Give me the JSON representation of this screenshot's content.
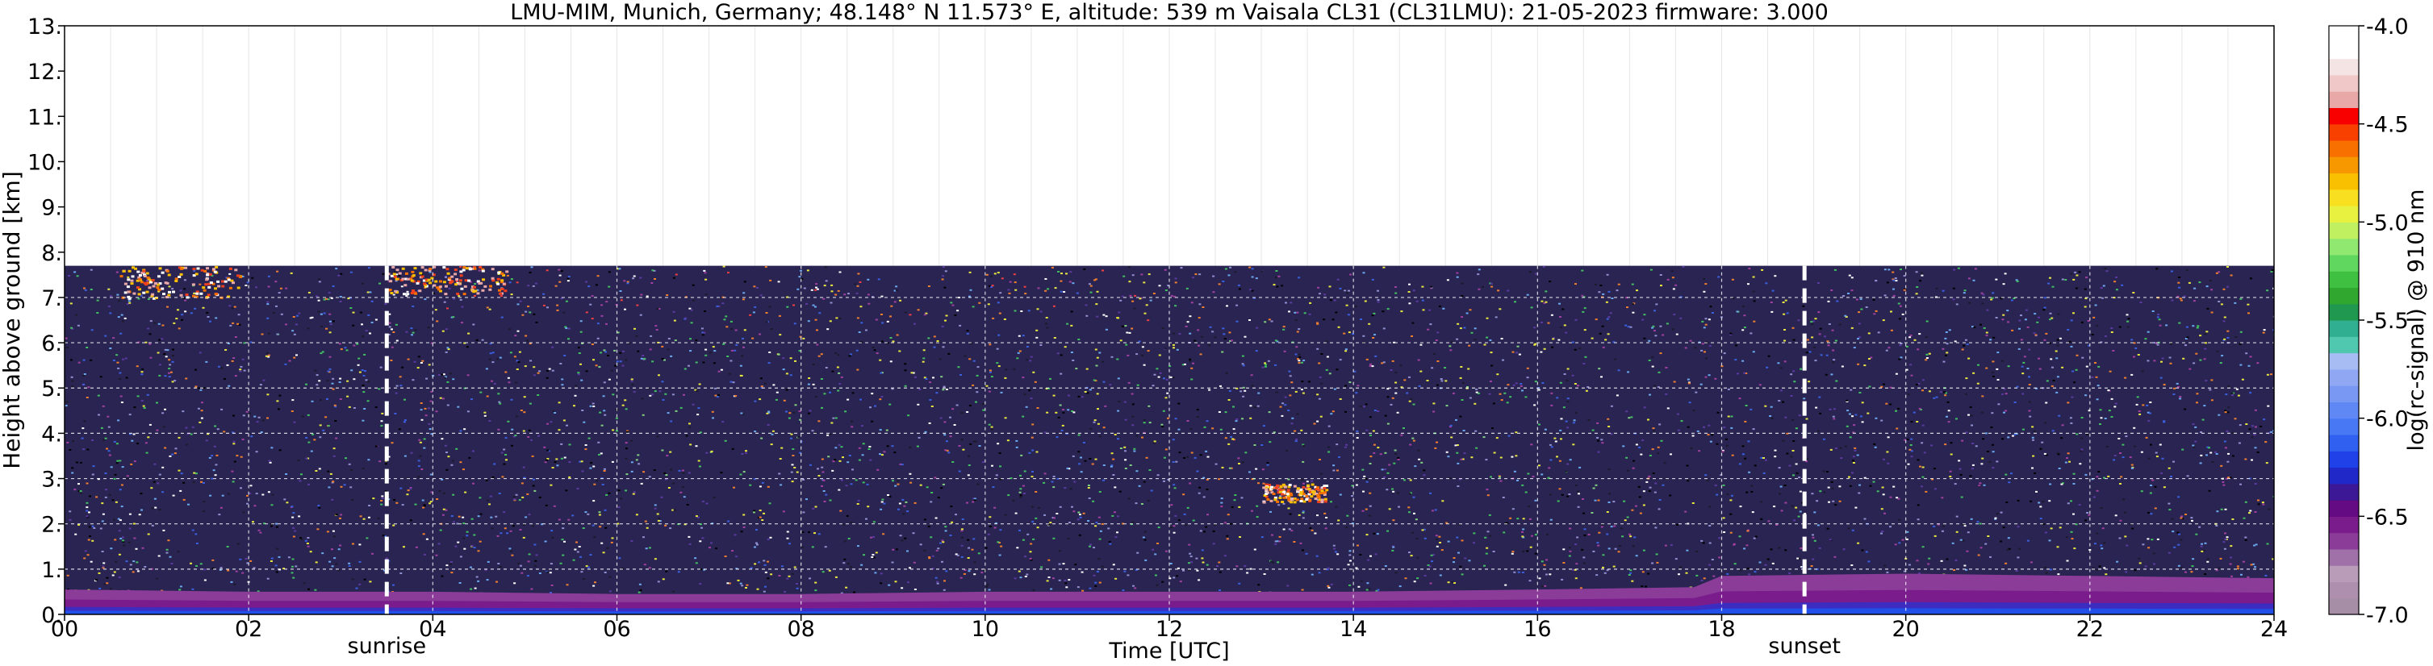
{
  "chart_data": {
    "type": "heatmap",
    "title": "LMU-MIM, Munich, Germany; 48.148° N 11.573° E, altitude: 539 m    Vaisala CL31 (CL31LMU): 21-05-2023    firmware: 3.000",
    "xlabel": "Time [UTC]",
    "ylabel": "Height above ground [km]",
    "xlim": [
      0,
      24
    ],
    "ylim": [
      0,
      13
    ],
    "x_ticks": [
      {
        "v": 0,
        "label": "00"
      },
      {
        "v": 2,
        "label": "02"
      },
      {
        "v": 4,
        "label": "04"
      },
      {
        "v": 6,
        "label": "06"
      },
      {
        "v": 8,
        "label": "08"
      },
      {
        "v": 10,
        "label": "10"
      },
      {
        "v": 12,
        "label": "12"
      },
      {
        "v": 14,
        "label": "14"
      },
      {
        "v": 16,
        "label": "16"
      },
      {
        "v": 18,
        "label": "18"
      },
      {
        "v": 20,
        "label": "20"
      },
      {
        "v": 22,
        "label": "22"
      },
      {
        "v": 24,
        "label": "24"
      }
    ],
    "y_ticks": [
      {
        "v": 0,
        "label": "0."
      },
      {
        "v": 1,
        "label": "1."
      },
      {
        "v": 2,
        "label": "2."
      },
      {
        "v": 3,
        "label": "3."
      },
      {
        "v": 4,
        "label": "4."
      },
      {
        "v": 5,
        "label": "5."
      },
      {
        "v": 6,
        "label": "6."
      },
      {
        "v": 7,
        "label": "7."
      },
      {
        "v": 8,
        "label": "8."
      },
      {
        "v": 9,
        "label": "9."
      },
      {
        "v": 10,
        "label": "10."
      },
      {
        "v": 11,
        "label": "11."
      },
      {
        "v": 12,
        "label": "12."
      },
      {
        "v": 13,
        "label": "13."
      }
    ],
    "data_top_km": 7.7,
    "events": [
      {
        "time": 3.5,
        "label": "sunrise"
      },
      {
        "time": 18.9,
        "label": "sunset"
      }
    ],
    "boundary_layer_top_km": [
      [
        0,
        0.55
      ],
      [
        2,
        0.5
      ],
      [
        4,
        0.5
      ],
      [
        6,
        0.45
      ],
      [
        8,
        0.45
      ],
      [
        10,
        0.5
      ],
      [
        12,
        0.5
      ],
      [
        14,
        0.5
      ],
      [
        16,
        0.55
      ],
      [
        17.7,
        0.6
      ],
      [
        18,
        0.85
      ],
      [
        20,
        0.9
      ],
      [
        22,
        0.85
      ],
      [
        24,
        0.8
      ]
    ],
    "clouds": [
      {
        "t0": 0.6,
        "t1": 1.9,
        "h0": 7.0,
        "h1": 7.7
      },
      {
        "t0": 3.5,
        "t1": 4.8,
        "h0": 7.1,
        "h1": 7.7
      },
      {
        "t0": 13.0,
        "t1": 13.7,
        "h0": 2.5,
        "h1": 2.9
      }
    ],
    "colorbar": {
      "label": "log(rc-signal) @ 910 nm",
      "range": [
        -7.0,
        -4.0
      ],
      "ticks": [
        {
          "v": -4.0,
          "label": "-4.0"
        },
        {
          "v": -4.5,
          "label": "-4.5"
        },
        {
          "v": -5.0,
          "label": "-5.0"
        },
        {
          "v": -5.5,
          "label": "-5.5"
        },
        {
          "v": -6.0,
          "label": "-6.0"
        },
        {
          "v": -6.5,
          "label": "-6.5"
        },
        {
          "v": -7.0,
          "label": "-7.0"
        }
      ],
      "colors": [
        "#a68ea6",
        "#ae90ae",
        "#b89cb8",
        "#a070a8",
        "#8a3c98",
        "#7a1c8c",
        "#640a82",
        "#3c1896",
        "#2028c8",
        "#2040e8",
        "#3060f0",
        "#4878f4",
        "#6088f4",
        "#7898f4",
        "#90a8f4",
        "#a8bcf4",
        "#50c8b0",
        "#30b090",
        "#209850",
        "#30a830",
        "#40c040",
        "#60d860",
        "#90e870",
        "#c0f060",
        "#e8f040",
        "#f8e020",
        "#f8c000",
        "#f89800",
        "#f87000",
        "#f84000",
        "#f80000",
        "#e8a8a8",
        "#f0c8c8",
        "#f4e4e4",
        "#ffffff",
        "#ffffff"
      ]
    }
  }
}
